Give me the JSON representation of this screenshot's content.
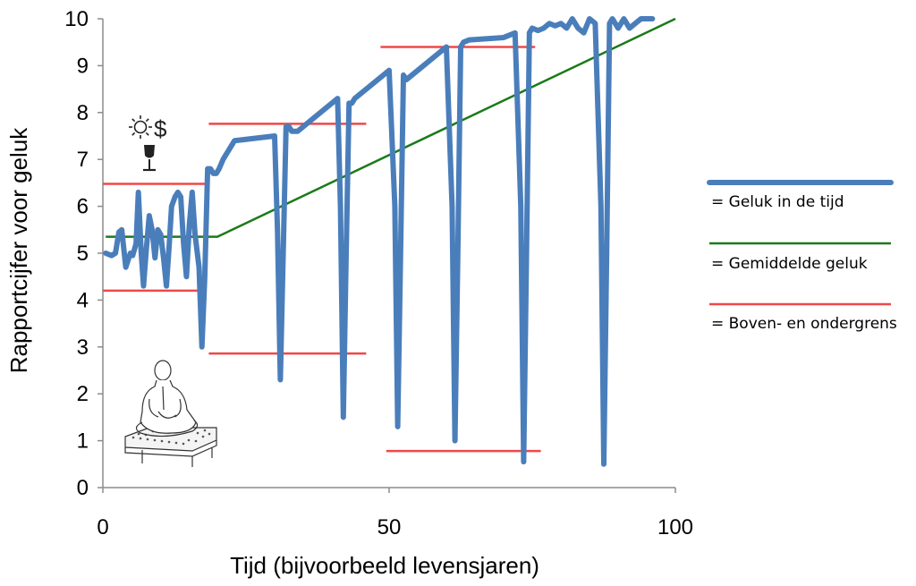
{
  "chart_data": {
    "type": "line",
    "xlabel": "Tijd (bijvoorbeeld levensjaren)",
    "ylabel": "Rapportcijfer voor geluk",
    "xlim": [
      0,
      100
    ],
    "ylim": [
      0,
      10
    ],
    "x_ticks": [
      "0",
      "50",
      "100"
    ],
    "y_ticks": [
      "0",
      "1",
      "2",
      "3",
      "4",
      "5",
      "6",
      "7",
      "8",
      "9",
      "10"
    ],
    "grid": false,
    "legend_position": "right",
    "colors": {
      "happiness": "#4a7ebb",
      "average": "#1a7a1a",
      "bounds": "#f04848"
    },
    "series": [
      {
        "name": "= Geluk in de tijd",
        "x": [
          0.5,
          1.5,
          2.2,
          2.8,
          3.3,
          4.0,
          4.8,
          5.2,
          5.8,
          6.2,
          6.7,
          7.1,
          7.6,
          8.1,
          8.6,
          9.1,
          9.6,
          10.1,
          10.6,
          11.1,
          11.6,
          12.0,
          12.6,
          13.1,
          13.6,
          14.1,
          14.6,
          15.1,
          15.6,
          16.1,
          16.8,
          17.3,
          17.8,
          18.3,
          18.8,
          19.3,
          19.8,
          20.3,
          21.0,
          22.0,
          23.0,
          30.0,
          30.5,
          31.0,
          31.5,
          32.0,
          32.5,
          33.0,
          34.0,
          35.0,
          41.0,
          41.5,
          42.0,
          42.5,
          43.0,
          43.5,
          44.0,
          50.0,
          51.0,
          51.5,
          52.0,
          52.5,
          53.0,
          54.0,
          60.0,
          61.0,
          61.5,
          62.0,
          62.5,
          63.0,
          64.0,
          70.0,
          72.0,
          73.0,
          73.5,
          74.0,
          74.5,
          75.0,
          76.0,
          77.0,
          78.0,
          79.0,
          80.0,
          81.0,
          82.0,
          83.0,
          84.0,
          85.0,
          86.0,
          87.0,
          87.5,
          88.0,
          88.5,
          89.0,
          89.5,
          90.0,
          91.0,
          92.0,
          93.0,
          94.0,
          95.0,
          96.0
        ],
        "y": [
          5.0,
          4.95,
          5.0,
          5.45,
          5.5,
          4.7,
          5.0,
          4.95,
          5.2,
          6.3,
          5.0,
          4.3,
          5.1,
          5.8,
          5.5,
          4.9,
          5.5,
          5.4,
          4.9,
          4.3,
          5.2,
          6.0,
          6.2,
          6.3,
          6.2,
          5.2,
          4.5,
          5.6,
          6.3,
          5.4,
          4.7,
          3.0,
          4.5,
          6.8,
          6.8,
          6.7,
          6.7,
          6.8,
          7.0,
          7.2,
          7.4,
          7.5,
          5.5,
          2.3,
          5.0,
          7.7,
          7.7,
          7.6,
          7.6,
          7.7,
          8.3,
          6.0,
          1.5,
          5.0,
          8.2,
          8.2,
          8.3,
          8.9,
          6.0,
          1.3,
          5.0,
          8.8,
          8.7,
          8.8,
          9.4,
          6.0,
          1.0,
          5.0,
          9.4,
          9.5,
          9.55,
          9.6,
          9.7,
          6.0,
          0.55,
          5.0,
          9.7,
          9.8,
          9.75,
          9.8,
          9.9,
          9.85,
          9.9,
          9.8,
          10.0,
          9.8,
          9.7,
          10.0,
          9.9,
          6.0,
          0.5,
          5.0,
          9.9,
          10.0,
          9.9,
          9.8,
          10.0,
          9.8,
          9.9,
          10.0,
          10.0,
          10.0
        ]
      },
      {
        "name": "= Gemiddelde geluk",
        "x": [
          0.5,
          20,
          100
        ],
        "y": [
          5.35,
          5.35,
          10
        ]
      },
      {
        "name": "= Boven- en ondergrens",
        "segments": [
          {
            "x": [
              0,
              18
            ],
            "y": [
              6.48,
              6.48
            ]
          },
          {
            "x": [
              0,
              18
            ],
            "y": [
              4.2,
              4.2
            ]
          },
          {
            "x": [
              18.5,
              46
            ],
            "y": [
              7.76,
              7.76
            ]
          },
          {
            "x": [
              18.5,
              46
            ],
            "y": [
              2.86,
              2.86
            ]
          },
          {
            "x": [
              48.5,
              75.5
            ],
            "y": [
              9.4,
              9.4
            ]
          },
          {
            "x": [
              49.5,
              76.5
            ],
            "y": [
              0.78,
              0.78
            ]
          }
        ]
      }
    ],
    "annotations": {
      "icons": [
        "sun-icon",
        "dollar-icon",
        "wine-glass-icon",
        "meditating-person-icon"
      ],
      "dollar_symbol": "$"
    }
  }
}
